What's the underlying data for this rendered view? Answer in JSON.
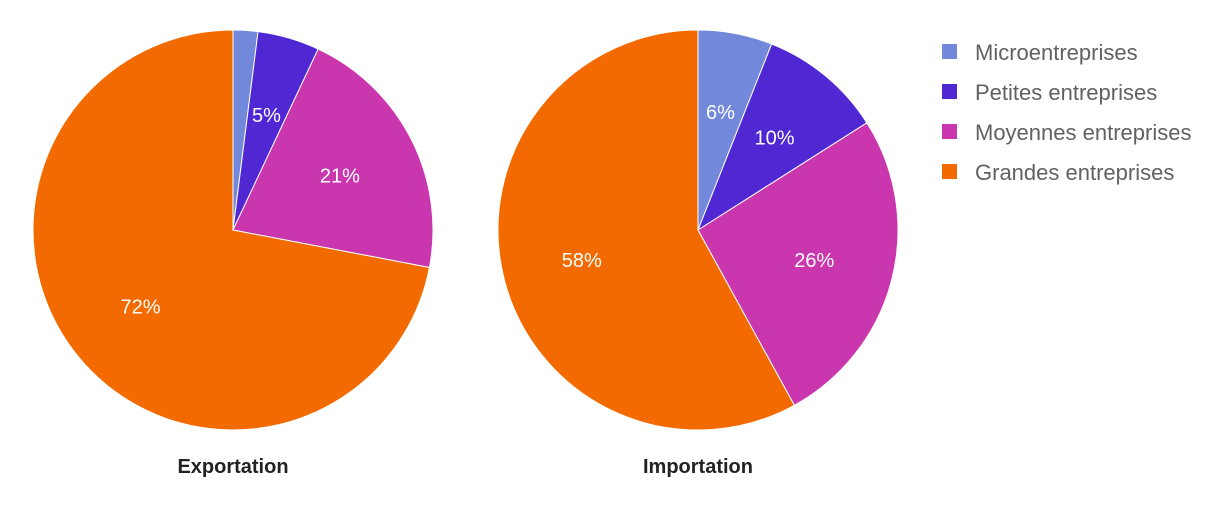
{
  "legend": {
    "placement": "right",
    "items": [
      {
        "label": "Microentreprises",
        "color": "#7289db"
      },
      {
        "label": "Petites entreprises",
        "color": "#4f28d4"
      },
      {
        "label": "Moyennes entreprises",
        "color": "#c936ad"
      },
      {
        "label": "Grandes entreprises",
        "color": "#f26a00"
      }
    ]
  },
  "chart_data": [
    {
      "type": "pie",
      "title": "Exportation",
      "categories": [
        "Microentreprises",
        "Petites entreprises",
        "Moyennes entreprises",
        "Grandes entreprises"
      ],
      "values": [
        2,
        5,
        21,
        72
      ],
      "labels": [
        "",
        "5%",
        "21%",
        "72%"
      ]
    },
    {
      "type": "pie",
      "title": "Importation",
      "categories": [
        "Microentreprises",
        "Petites entreprises",
        "Moyennes entreprises",
        "Grandes entreprises"
      ],
      "values": [
        6,
        10,
        26,
        58
      ],
      "labels": [
        "6%",
        "10%",
        "26%",
        "58%"
      ]
    }
  ]
}
